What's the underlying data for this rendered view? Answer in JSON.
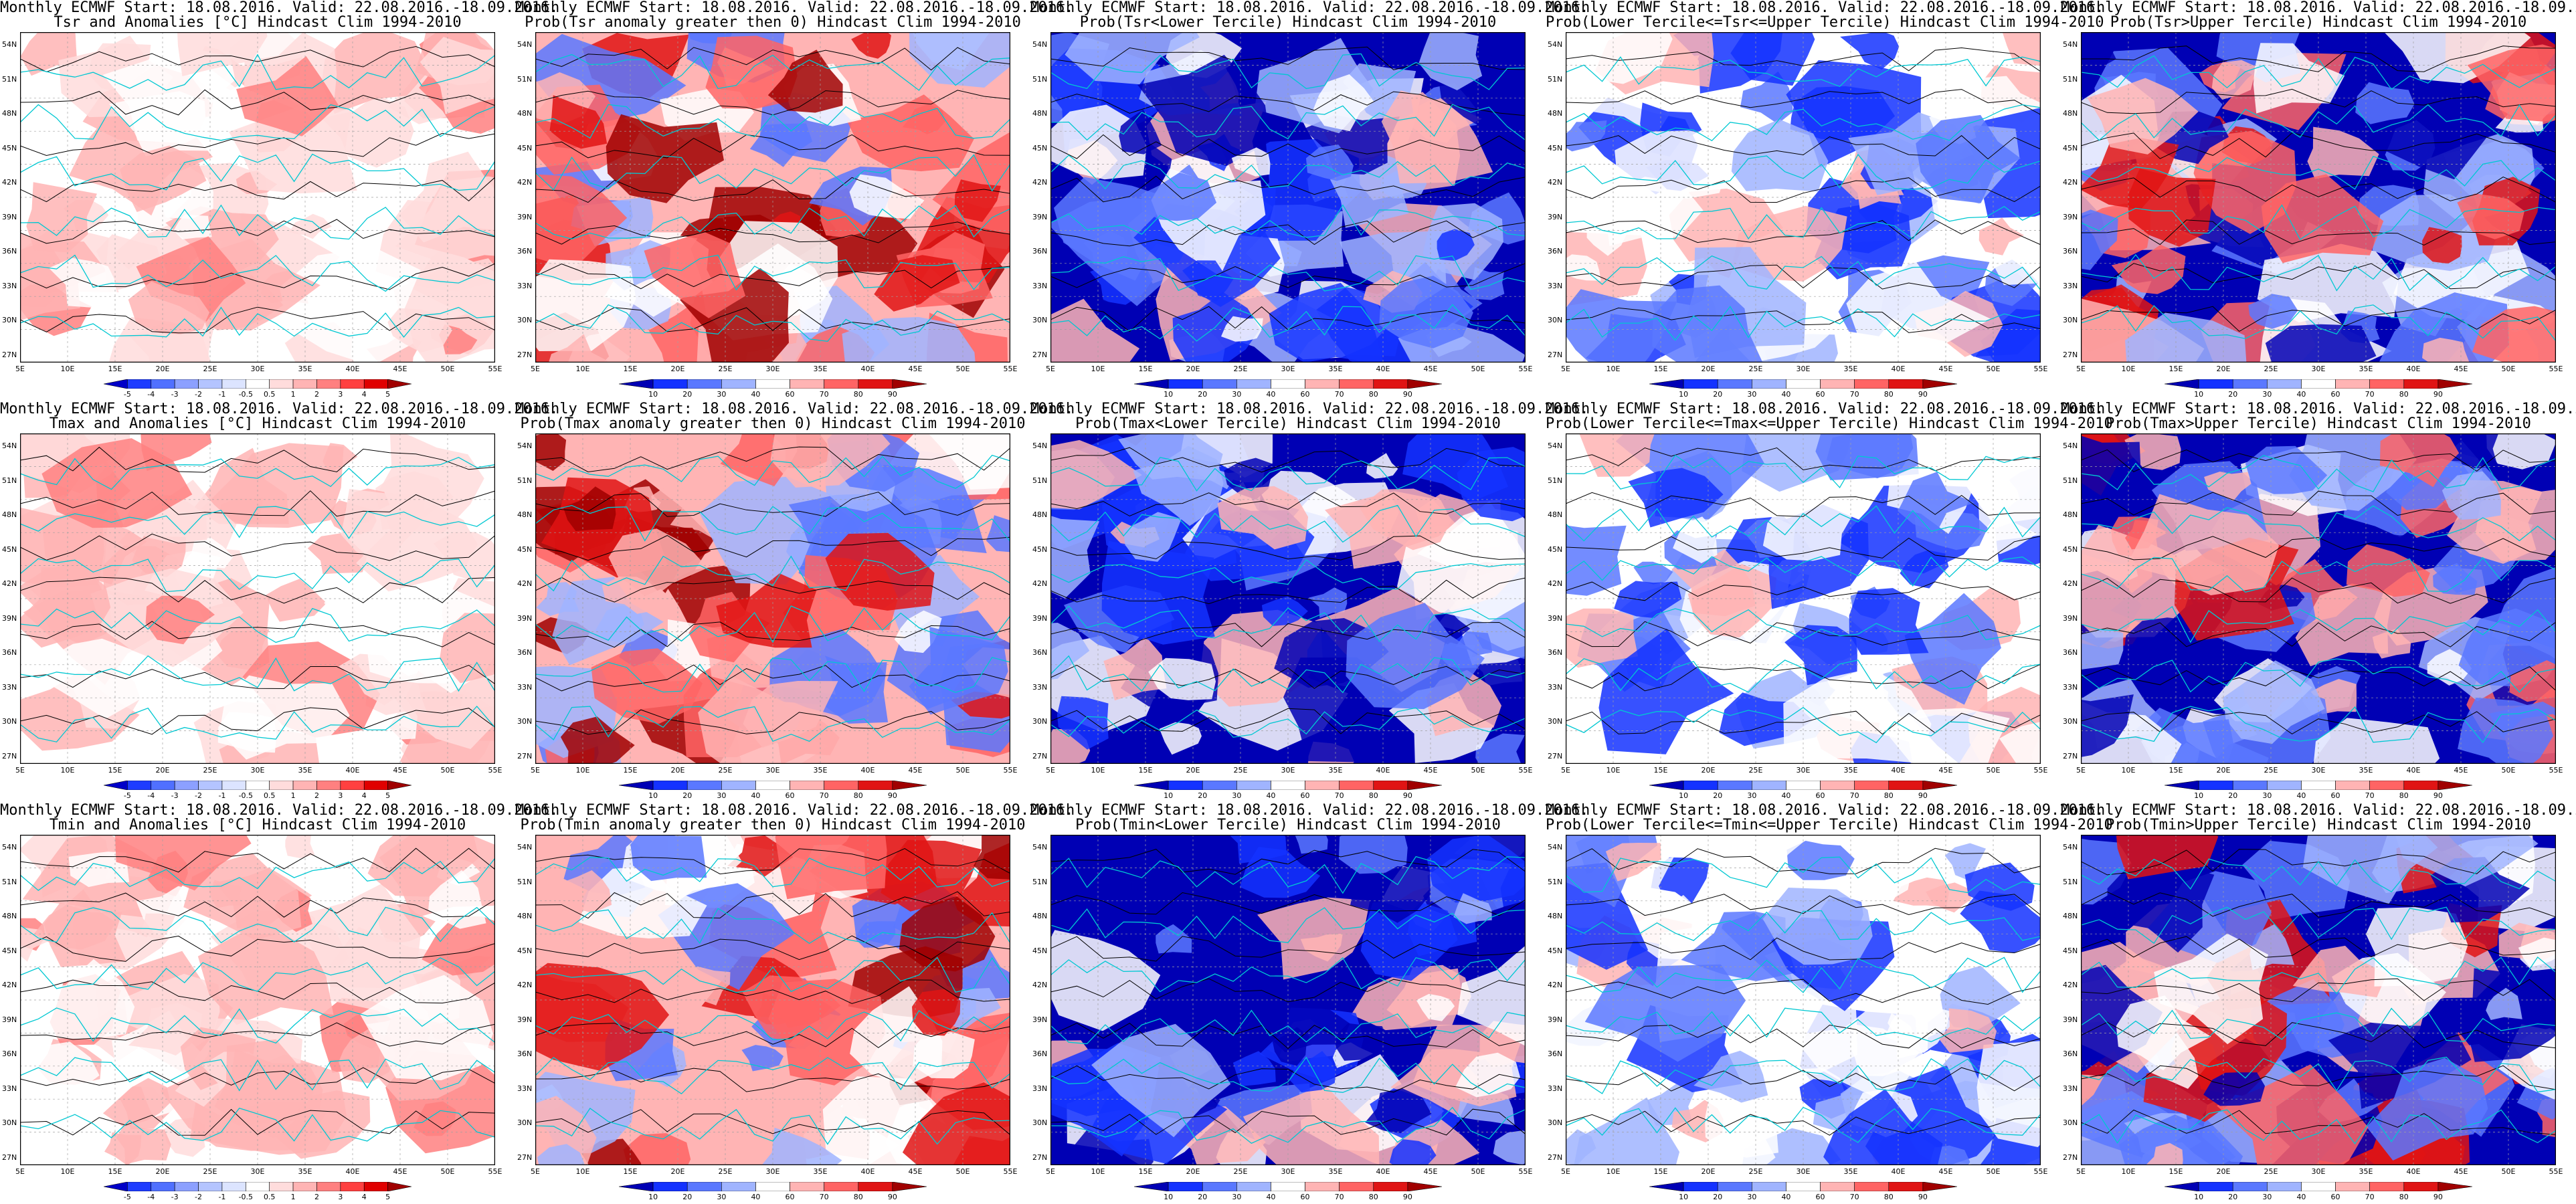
{
  "figure": {
    "title_line1": "Monthly ECMWF Start: 18.08.2016. Valid: 22.08.2016.-18.09.2016.",
    "lat_ticks": [
      "54N",
      "51N",
      "48N",
      "45N",
      "42N",
      "39N",
      "36N",
      "33N",
      "30N",
      "27N"
    ],
    "lon_ticks": [
      "5E",
      "10E",
      "15E",
      "20E",
      "25E",
      "30E",
      "35E",
      "40E",
      "45E",
      "50E",
      "55E"
    ],
    "anomaly_scale": {
      "labels": [
        "-5",
        "-4",
        "-3",
        "-2",
        "-1",
        "-0.5",
        "0.5",
        "1",
        "2",
        "3",
        "4",
        "5"
      ],
      "colors": [
        "#0000c8",
        "#1e3cff",
        "#5070ff",
        "#8ca0ff",
        "#b4c4ff",
        "#dce4ff",
        "#ffffff",
        "#ffdcdc",
        "#ffb4b4",
        "#ff8080",
        "#ff4040",
        "#e00000",
        "#a00000"
      ]
    },
    "prob_scale": {
      "labels": [
        "10",
        "20",
        "30",
        "40",
        "60",
        "70",
        "80",
        "90"
      ],
      "colors": [
        "#0000b4",
        "#1432ff",
        "#5a78ff",
        "#a0b4ff",
        "#ffffff",
        "#ffb4b4",
        "#ff6464",
        "#e01414",
        "#a00000"
      ]
    },
    "colors": {
      "coast": "#00c8d2",
      "contour": "#000000",
      "grid": "#a0a0a0"
    }
  },
  "rows": [
    {
      "variable": "Tsr",
      "panels": [
        {
          "title_line2": "Tsr and Anomalies [°C] Hindcast Clim 1994-2010",
          "kind": "anomaly",
          "dominant": "warm-light"
        },
        {
          "title_line2": "Prob(Tsr anomaly greater then 0) Hindcast Clim 1994-2010",
          "kind": "prob",
          "dominant": "warm"
        },
        {
          "title_line2": "Prob(Tsr<Lower Tercile) Hindcast Clim 1994-2010",
          "kind": "prob",
          "dominant": "cold"
        },
        {
          "title_line2": "Prob(Lower Tercile<=Tsr<=Upper Tercile) Hindcast Clim 1994-2010",
          "kind": "prob",
          "dominant": "cold-light"
        },
        {
          "title_line2": "Prob(Tsr>Upper Tercile) Hindcast Clim 1994-2010",
          "kind": "prob",
          "dominant": "mixed"
        }
      ]
    },
    {
      "variable": "Tmax",
      "panels": [
        {
          "title_line2": "Tmax and Anomalies [°C] Hindcast Clim 1994-2010",
          "kind": "anomaly",
          "dominant": "warm-light"
        },
        {
          "title_line2": "Prob(Tmax anomaly greater then 0) Hindcast Clim 1994-2010",
          "kind": "prob",
          "dominant": "warm"
        },
        {
          "title_line2": "Prob(Tmax<Lower Tercile) Hindcast Clim 1994-2010",
          "kind": "prob",
          "dominant": "cold"
        },
        {
          "title_line2": "Prob(Lower Tercile<=Tmax<=Upper Tercile) Hindcast Clim 1994-2010",
          "kind": "prob",
          "dominant": "cold-light"
        },
        {
          "title_line2": "Prob(Tmax>Upper Tercile) Hindcast Clim 1994-2010",
          "kind": "prob",
          "dominant": "mixed"
        }
      ]
    },
    {
      "variable": "Tmin",
      "panels": [
        {
          "title_line2": "Tmin and Anomalies [°C] Hindcast Clim 1994-2010",
          "kind": "anomaly",
          "dominant": "warm-light"
        },
        {
          "title_line2": "Prob(Tmin anomaly greater then 0) Hindcast Clim 1994-2010",
          "kind": "prob",
          "dominant": "warm"
        },
        {
          "title_line2": "Prob(Tmin<Lower Tercile) Hindcast Clim 1994-2010",
          "kind": "prob",
          "dominant": "cold"
        },
        {
          "title_line2": "Prob(Lower Tercile<=Tmin<=Upper Tercile) Hindcast Clim 1994-2010",
          "kind": "prob",
          "dominant": "cold-light"
        },
        {
          "title_line2": "Prob(Tmin>Upper Tercile) Hindcast Clim 1994-2010",
          "kind": "prob",
          "dominant": "mixed"
        }
      ]
    }
  ]
}
